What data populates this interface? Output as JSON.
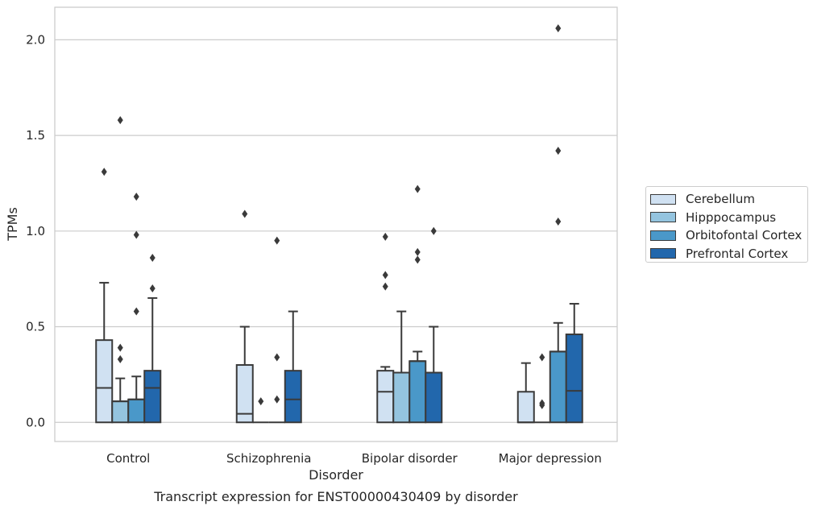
{
  "chart_data": {
    "type": "box",
    "title": "Transcript expression for ENST00000430409 by disorder",
    "xlabel": "Disorder",
    "ylabel": "TPMs",
    "ylim": [
      -0.1,
      2.17
    ],
    "yticks": [
      "0.0",
      "0.5",
      "1.0",
      "1.5",
      "2.0"
    ],
    "ytick_values": [
      0.0,
      0.5,
      1.0,
      1.5,
      2.0
    ],
    "grid": "horizontal",
    "legend_position": "right",
    "categories": [
      "Control",
      "Schizophrenia",
      "Bipolar disorder",
      "Major depression"
    ],
    "series": [
      {
        "name": "Cerebellum",
        "color": "#d0e1f2",
        "boxes": [
          {
            "q1": 0.0,
            "median": 0.18,
            "q3": 0.43,
            "whisker_low": 0.0,
            "whisker_high": 0.73,
            "outliers": [
              1.31
            ]
          },
          {
            "q1": 0.0,
            "median": 0.045,
            "q3": 0.3,
            "whisker_low": 0.0,
            "whisker_high": 0.5,
            "outliers": [
              1.09
            ]
          },
          {
            "q1": 0.0,
            "median": 0.16,
            "q3": 0.27,
            "whisker_low": 0.0,
            "whisker_high": 0.29,
            "outliers": [
              0.71,
              0.77,
              0.97
            ]
          },
          {
            "q1": 0.0,
            "median": 0.0,
            "q3": 0.16,
            "whisker_low": 0.0,
            "whisker_high": 0.31,
            "outliers": []
          }
        ]
      },
      {
        "name": "Hipppocampus",
        "color": "#94c4df",
        "boxes": [
          {
            "q1": 0.0,
            "median": 0.11,
            "q3": 0.11,
            "whisker_low": 0.0,
            "whisker_high": 0.23,
            "outliers": [
              0.33,
              0.39,
              1.58
            ]
          },
          {
            "q1": 0.0,
            "median": 0.0,
            "q3": 0.0,
            "whisker_low": 0.0,
            "whisker_high": 0.0,
            "outliers": [
              0.11
            ]
          },
          {
            "q1": 0.0,
            "median": 0.26,
            "q3": 0.26,
            "whisker_low": 0.0,
            "whisker_high": 0.58,
            "outliers": []
          },
          {
            "q1": 0.0,
            "median": 0.0,
            "q3": 0.0,
            "whisker_low": 0.0,
            "whisker_high": 0.0,
            "outliers": [
              0.09,
              0.1,
              0.34
            ]
          }
        ]
      },
      {
        "name": "Orbitofontal Cortex",
        "color": "#4a98c9",
        "boxes": [
          {
            "q1": 0.0,
            "median": 0.12,
            "q3": 0.12,
            "whisker_low": 0.0,
            "whisker_high": 0.24,
            "outliers": [
              0.58,
              0.98,
              1.18
            ]
          },
          {
            "q1": 0.0,
            "median": 0.0,
            "q3": 0.0,
            "whisker_low": 0.0,
            "whisker_high": 0.0,
            "outliers": [
              0.12,
              0.34,
              0.95
            ]
          },
          {
            "q1": 0.0,
            "median": 0.32,
            "q3": 0.32,
            "whisker_low": 0.0,
            "whisker_high": 0.37,
            "outliers": [
              0.85,
              0.89,
              1.22
            ]
          },
          {
            "q1": 0.0,
            "median": 0.37,
            "q3": 0.37,
            "whisker_low": 0.0,
            "whisker_high": 0.52,
            "outliers": [
              1.05,
              1.42,
              2.06
            ]
          }
        ]
      },
      {
        "name": "Prefrontal Cortex",
        "color": "#2267ac",
        "boxes": [
          {
            "q1": 0.0,
            "median": 0.18,
            "q3": 0.27,
            "whisker_low": 0.0,
            "whisker_high": 0.65,
            "outliers": [
              0.7,
              0.86
            ]
          },
          {
            "q1": 0.0,
            "median": 0.12,
            "q3": 0.27,
            "whisker_low": 0.0,
            "whisker_high": 0.58,
            "outliers": []
          },
          {
            "q1": 0.0,
            "median": 0.26,
            "q3": 0.26,
            "whisker_low": 0.0,
            "whisker_high": 0.5,
            "outliers": [
              1.0
            ]
          },
          {
            "q1": 0.0,
            "median": 0.165,
            "q3": 0.46,
            "whisker_low": 0.0,
            "whisker_high": 0.62,
            "outliers": []
          }
        ]
      }
    ]
  }
}
